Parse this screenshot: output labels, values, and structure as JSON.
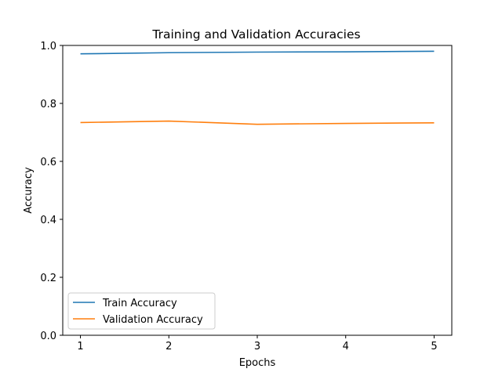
{
  "chart_data": {
    "type": "line",
    "title": "Training and Validation Accuracies",
    "xlabel": "Epochs",
    "ylabel": "Accuracy",
    "x": [
      1,
      2,
      3,
      4,
      5
    ],
    "xticks": [
      1,
      2,
      3,
      4,
      5
    ],
    "xlim": [
      0.8,
      5.2
    ],
    "ylim": [
      0.0,
      1.0
    ],
    "yticks": [
      0.0,
      0.2,
      0.4,
      0.6,
      0.8,
      1.0
    ],
    "ytick_labels": [
      "0.0",
      "0.2",
      "0.4",
      "0.6",
      "0.8",
      "1.0"
    ],
    "grid": false,
    "legend_position": "lower-left",
    "series": [
      {
        "name": "Train Accuracy",
        "color": "#1f77b4",
        "values": [
          0.971,
          0.975,
          0.977,
          0.978,
          0.98
        ]
      },
      {
        "name": "Validation Accuracy",
        "color": "#ff7f0e",
        "values": [
          0.734,
          0.739,
          0.728,
          0.731,
          0.733
        ]
      }
    ]
  }
}
